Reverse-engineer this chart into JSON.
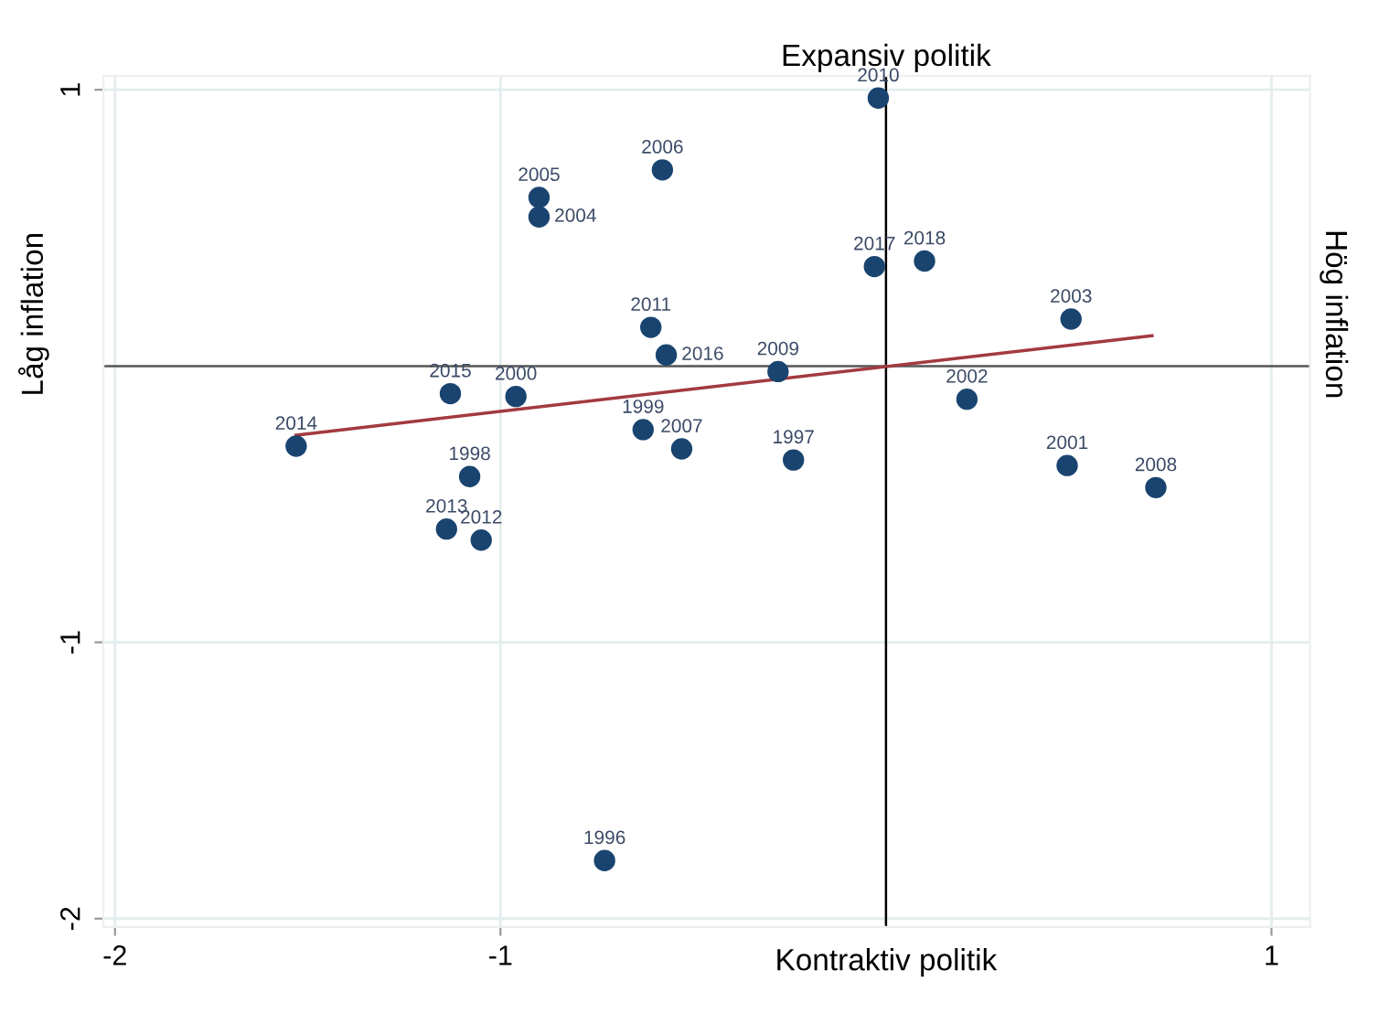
{
  "chart_data": {
    "type": "scatter",
    "title": "Expansiv politik",
    "xlabel": "Kontraktiv politik",
    "ylabel": "Låg inflation",
    "y2label": "Hög inflation",
    "xlim": [
      -2.03,
      1.1
    ],
    "ylim": [
      -2.03,
      1.05
    ],
    "xticks": [
      -2,
      -1,
      1
    ],
    "yticks": [
      -2,
      -1,
      1
    ],
    "grid": true,
    "legend": false,
    "series": [
      {
        "marker": "circle",
        "color": "#1a4470",
        "x": [
          -0.73,
          -0.24,
          -1.08,
          -0.63,
          -0.96,
          0.47,
          0.21,
          0.48,
          -0.9,
          -0.9,
          -0.58,
          -0.53,
          0.7,
          -0.28,
          -0.02,
          -0.61,
          -1.05,
          -1.14,
          -1.53,
          -1.13,
          -0.57,
          -0.03,
          0.1
        ],
        "values": [
          -1.79,
          -0.34,
          -0.4,
          -0.23,
          -0.11,
          -0.36,
          -0.12,
          0.17,
          0.54,
          0.61,
          0.71,
          -0.3,
          -0.44,
          -0.02,
          0.97,
          0.14,
          -0.63,
          -0.59,
          -0.29,
          -0.1,
          0.04,
          0.36,
          0.38
        ]
      },
      {
        "type": "line",
        "color": "#a33a3f",
        "x": [
          -1.53,
          0.69
        ],
        "values": [
          -0.25,
          0.11
        ]
      }
    ],
    "ref_lines": [
      {
        "axis": "x",
        "value": 0,
        "color": "#000000"
      },
      {
        "axis": "y",
        "value": 0,
        "color": "#555555"
      }
    ],
    "annotations": [
      {
        "text": "1996",
        "x": -0.73,
        "y": -1.79
      },
      {
        "text": "1997",
        "x": -0.24,
        "y": -0.34
      },
      {
        "text": "1998",
        "x": -1.08,
        "y": -0.4
      },
      {
        "text": "1999",
        "x": -0.63,
        "y": -0.23
      },
      {
        "text": "2000",
        "x": -0.96,
        "y": -0.11
      },
      {
        "text": "2001",
        "x": 0.47,
        "y": -0.36
      },
      {
        "text": "2002",
        "x": 0.21,
        "y": -0.12
      },
      {
        "text": "2003",
        "x": 0.48,
        "y": 0.17
      },
      {
        "text": "2004",
        "x": -0.9,
        "y": 0.54
      },
      {
        "text": "2005",
        "x": -0.9,
        "y": 0.61
      },
      {
        "text": "2006",
        "x": -0.58,
        "y": 0.71
      },
      {
        "text": "2007",
        "x": -0.53,
        "y": -0.3
      },
      {
        "text": "2008",
        "x": 0.7,
        "y": -0.44
      },
      {
        "text": "2009",
        "x": -0.28,
        "y": -0.02
      },
      {
        "text": "2010",
        "x": -0.02,
        "y": 0.97
      },
      {
        "text": "2011",
        "x": -0.61,
        "y": 0.14
      },
      {
        "text": "2012",
        "x": -1.05,
        "y": -0.63
      },
      {
        "text": "2013",
        "x": -1.14,
        "y": -0.59
      },
      {
        "text": "2014",
        "x": -1.53,
        "y": -0.29
      },
      {
        "text": "2015",
        "x": -1.13,
        "y": -0.1
      },
      {
        "text": "2016",
        "x": -0.57,
        "y": 0.04
      },
      {
        "text": "2017",
        "x": -0.03,
        "y": 0.36
      },
      {
        "text": "2018",
        "x": 0.1,
        "y": 0.38
      }
    ]
  }
}
